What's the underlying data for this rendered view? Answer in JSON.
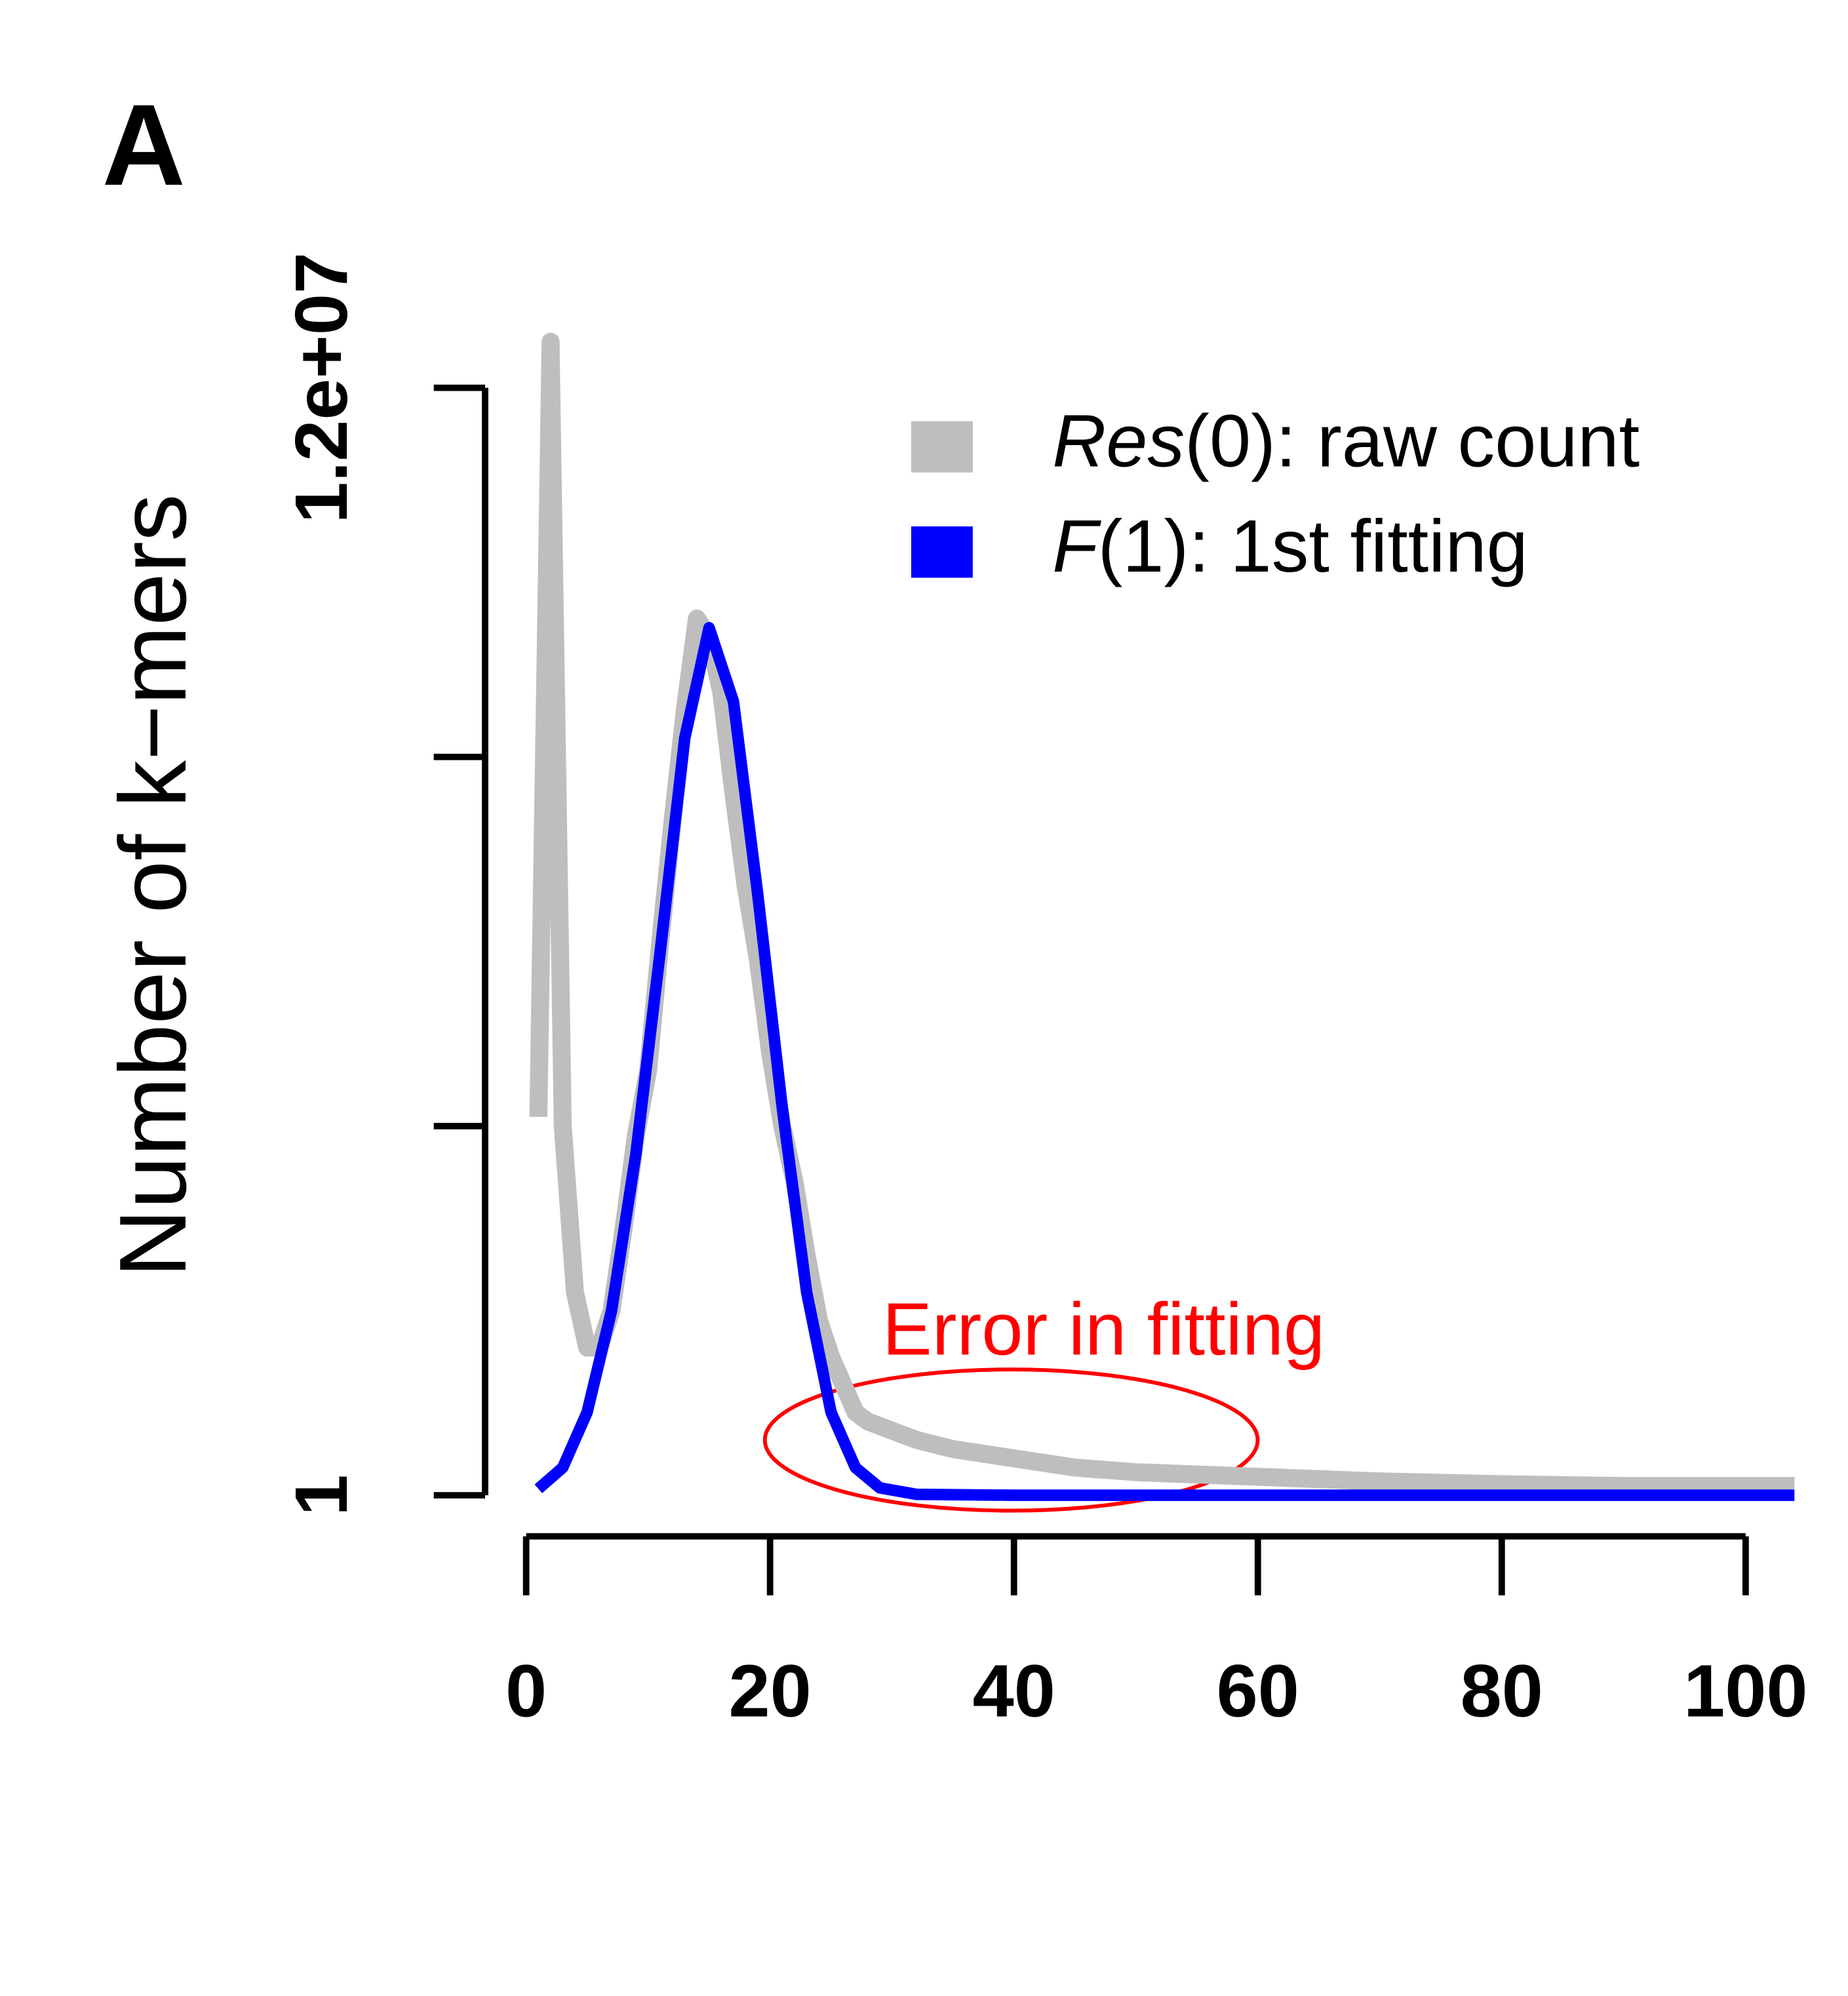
{
  "chart_data": {
    "type": "line",
    "panel_label": "A",
    "ylabel": "Number of k−mers",
    "annotation": "Error in fitting",
    "xlim": [
      0,
      104.5
    ],
    "xticks": [
      0,
      20,
      40,
      60,
      80,
      100
    ],
    "ylim": [
      1,
      12000000
    ],
    "yticks": [
      1,
      {
        "value": 4000000,
        "label": null
      },
      {
        "value": 8000000,
        "label": null
      },
      {
        "value": 12000000,
        "label": "1.2e+07"
      }
    ],
    "legend": "top-right",
    "series": [
      {
        "name": "Res(0): raw count",
        "color": "#bebebe",
        "x": [
          1,
          2,
          3,
          4,
          5,
          6,
          7,
          8,
          9,
          10,
          11,
          12,
          13,
          14,
          15,
          16,
          17,
          18,
          19,
          20,
          21,
          22,
          23,
          24,
          25,
          26,
          27,
          28,
          29,
          30,
          32,
          35,
          40,
          45,
          50,
          60,
          70,
          80,
          90,
          100,
          104
        ],
        "values": [
          4100000,
          12500000,
          4000000,
          2200000,
          1600000,
          1600000,
          2000000,
          2900000,
          3900000,
          4600000,
          6000000,
          7300000,
          8500000,
          9500000,
          9300000,
          8700000,
          7600000,
          6600000,
          5800000,
          4800000,
          4000000,
          3400000,
          2600000,
          1900000,
          1500000,
          1200000,
          900000,
          800000,
          750000,
          700000,
          600000,
          500000,
          400000,
          300000,
          250000,
          200000,
          150000,
          120000,
          100000,
          100000,
          100000
        ]
      },
      {
        "name": "F(1): 1st fitting",
        "color": "#0000ff",
        "x": [
          1,
          3,
          5,
          7,
          9,
          11,
          13,
          15,
          17,
          19,
          21,
          23,
          25,
          27,
          29,
          32,
          40,
          104
        ],
        "values": [
          70000,
          300000,
          900000,
          2000000,
          3700000,
          5900000,
          8200000,
          9400000,
          8600000,
          6500000,
          4200000,
          2200000,
          900000,
          300000,
          80000,
          10000,
          0,
          0
        ]
      }
    ]
  }
}
